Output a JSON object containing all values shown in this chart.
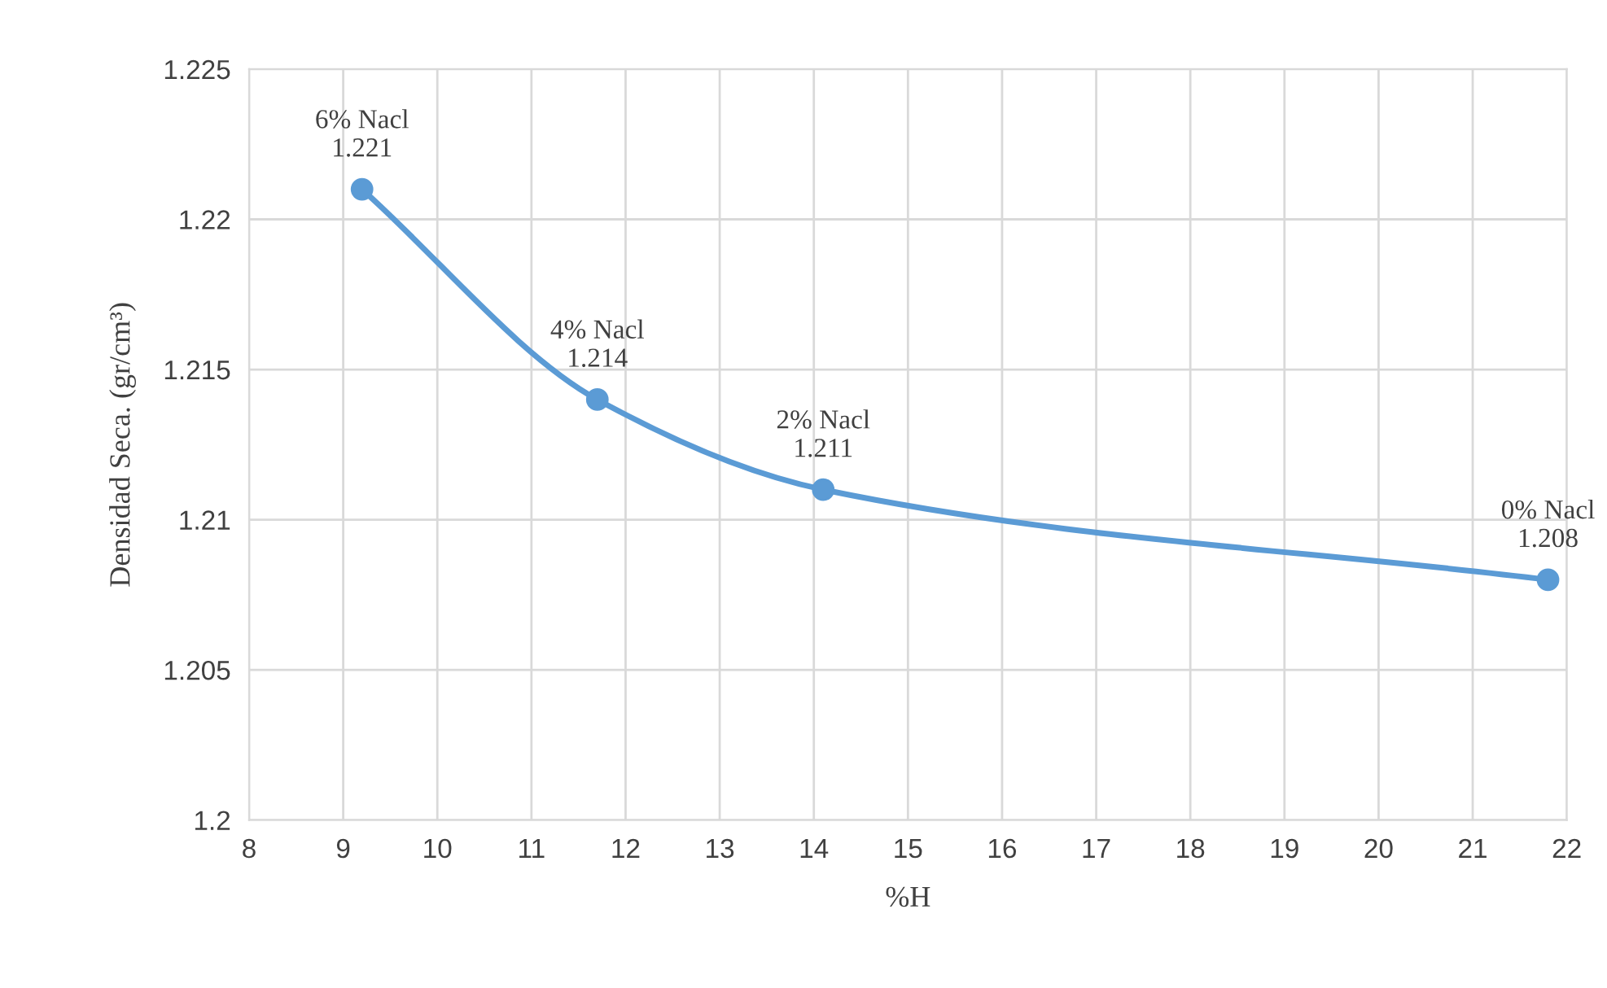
{
  "chart_data": {
    "type": "line",
    "xlabel": "%H",
    "ylabel": "Densidad Seca. (gr/cm³)",
    "x": [
      9.2,
      11.7,
      14.1,
      21.8
    ],
    "series": [
      {
        "color": "#5b9bd5",
        "values": [
          1.221,
          1.214,
          1.211,
          1.208
        ]
      }
    ],
    "annotations": [
      {
        "text": "6% Nacl\n1.221",
        "x": 9.2,
        "y": 1.221
      },
      {
        "text": "4% Nacl\n1.214",
        "x": 11.7,
        "y": 1.214
      },
      {
        "text": "2% Nacl\n1.211",
        "x": 14.1,
        "y": 1.211
      },
      {
        "text": "0% Nacl\n1.208",
        "x": 21.8,
        "y": 1.208
      }
    ],
    "xlim": [
      8,
      22
    ],
    "xticks": [
      8,
      9,
      10,
      11,
      12,
      13,
      14,
      15,
      16,
      17,
      18,
      19,
      20,
      21,
      22
    ],
    "ylim": [
      1.2,
      1.225
    ],
    "yticks": [
      {
        "value": 1.2,
        "label": "1.2"
      },
      {
        "value": 1.205,
        "label": "1.205"
      },
      {
        "value": 1.21,
        "label": "1.21"
      },
      {
        "value": 1.215,
        "label": "1.215"
      },
      {
        "value": 1.22,
        "label": "1.22"
      },
      {
        "value": 1.225,
        "label": "1.225"
      }
    ],
    "grid": true,
    "marker": "circle",
    "line_style": "solid"
  }
}
